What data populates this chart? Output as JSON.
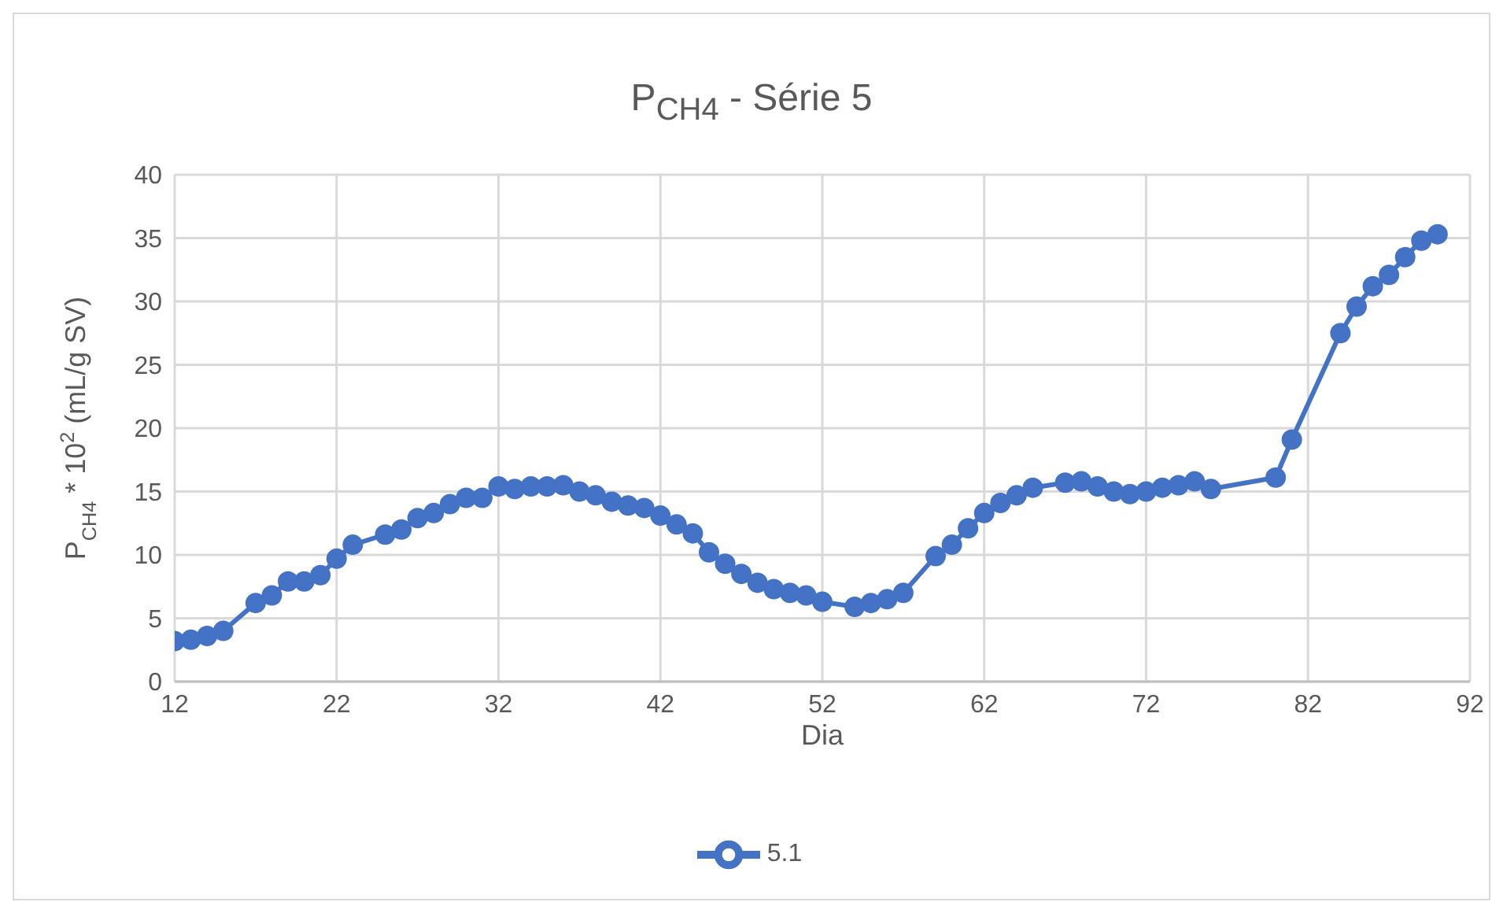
{
  "chart_data": {
    "type": "line",
    "title": "P$_{CH4}$ - Série 5",
    "xlabel": "Dia",
    "ylabel": "P$_{CH4}$ * 10$^{2}$ (mL/g SV)",
    "series": [
      {
        "name": "5.1",
        "color": "#4472c4",
        "x": [
          12,
          13,
          14,
          15,
          17,
          18,
          19,
          20,
          21,
          22,
          23,
          25,
          26,
          27,
          28,
          29,
          30,
          31,
          32,
          33,
          34,
          35,
          36,
          37,
          38,
          39,
          40,
          41,
          42,
          43,
          44,
          45,
          46,
          47,
          48,
          49,
          50,
          51,
          52,
          54,
          55,
          56,
          57,
          59,
          60,
          61,
          62,
          63,
          64,
          65,
          67,
          68,
          69,
          70,
          71,
          72,
          73,
          74,
          75,
          76,
          80,
          81,
          84,
          85,
          86,
          87,
          88,
          89,
          90
        ],
        "values": [
          3.2,
          3.3,
          3.6,
          4.0,
          6.2,
          6.8,
          7.9,
          7.9,
          8.4,
          9.7,
          10.8,
          11.6,
          12.0,
          12.9,
          13.3,
          14.0,
          14.5,
          14.5,
          15.4,
          15.2,
          15.4,
          15.4,
          15.5,
          15.0,
          14.7,
          14.2,
          13.9,
          13.7,
          13.1,
          12.4,
          11.7,
          10.2,
          9.3,
          8.5,
          7.8,
          7.3,
          7.0,
          6.8,
          6.3,
          5.9,
          6.2,
          6.5,
          7.0,
          9.9,
          10.8,
          12.1,
          13.3,
          14.1,
          14.7,
          15.3,
          15.7,
          15.8,
          15.4,
          15.0,
          14.8,
          15.0,
          15.3,
          15.5,
          15.8,
          15.2,
          16.1,
          19.1,
          27.5,
          29.6,
          31.2,
          32.1,
          33.5,
          34.8,
          35.3
        ]
      }
    ],
    "xlim": [
      12,
      92
    ],
    "xticks": [
      12,
      22,
      32,
      42,
      52,
      62,
      72,
      82,
      92
    ],
    "ylim": [
      0,
      40
    ],
    "yticks": [
      0,
      5,
      10,
      15,
      20,
      25,
      30,
      35,
      40
    ],
    "grid": true,
    "legend": "bottom",
    "marker": "circle",
    "line_style": "solid"
  }
}
